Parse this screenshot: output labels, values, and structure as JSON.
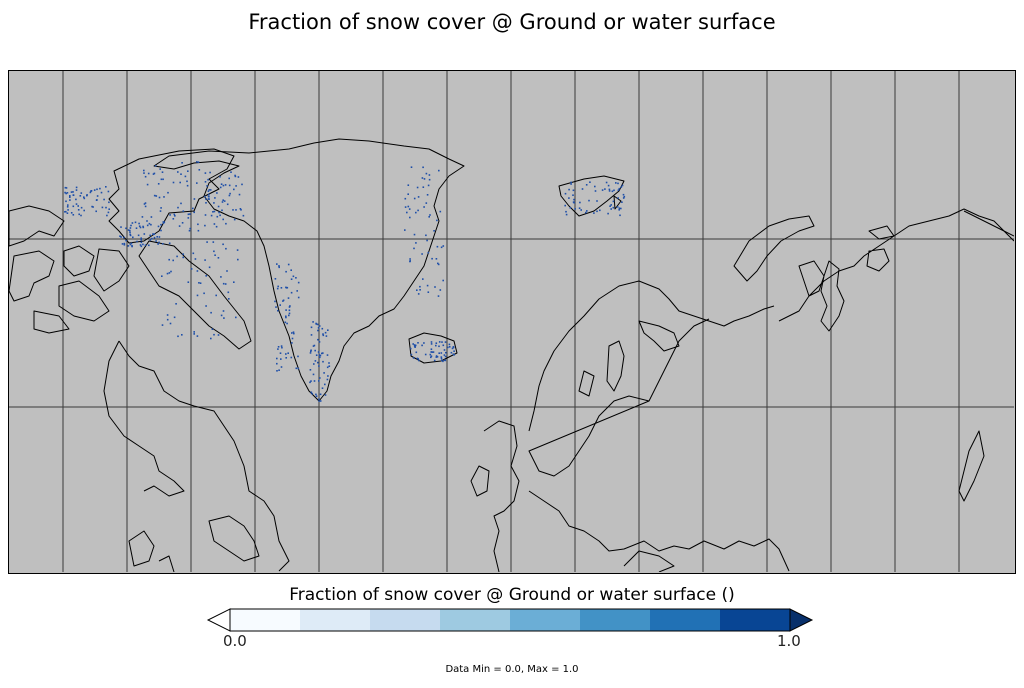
{
  "title": "Fraction of snow cover @ Ground or water surface",
  "map": {
    "background_color": "#bfbfbf",
    "coastline_color": "#000000",
    "gridline_color": "#3a3a3a",
    "meridian_count": 15,
    "parallel_count": 2,
    "snow_color": "#1f4fa8"
  },
  "colorbar": {
    "title": "Fraction of snow cover @ Ground or water surface ()",
    "min_label": "0.0",
    "max_label": "1.0",
    "colors": [
      "#f7fbff",
      "#deebf7",
      "#c6dbef",
      "#9ecae1",
      "#6baed6",
      "#4292c6",
      "#2171b5",
      "#084594"
    ],
    "under_color": "#ffffff",
    "over_color": "#08306b"
  },
  "data_range": "Data Min = 0.0, Max = 1.0"
}
